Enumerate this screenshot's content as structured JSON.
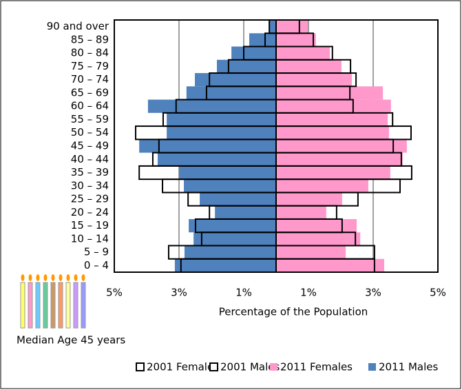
{
  "chart_data": {
    "type": "pyramid",
    "xlabel": "Percentage of the Population",
    "annotation": "Median Age 45 years",
    "categories": [
      "90 and over",
      "85 – 89",
      "80 – 84",
      "75 – 79",
      "70 – 74",
      "65 – 69",
      "60 – 64",
      "55 – 59",
      "50 – 54",
      "45 – 49",
      "40 – 44",
      "35 – 39",
      "30 – 34",
      "25 – 29",
      "20 – 24",
      "15 – 19",
      "10 – 14",
      "5 – 9",
      "0 – 4"
    ],
    "xlim": [
      -5,
      5
    ],
    "xticks": [
      {
        "value": -5,
        "label": "5%"
      },
      {
        "value": -3,
        "label": "3%"
      },
      {
        "value": -1,
        "label": "1%"
      },
      {
        "value": 1,
        "label": "1%"
      },
      {
        "value": 3,
        "label": "3%"
      },
      {
        "value": 5,
        "label": "5%"
      }
    ],
    "grid": true,
    "series": [
      {
        "name": "2001 Females",
        "color": "#000000",
        "outline": true,
        "values": [
          0.72,
          1.15,
          1.74,
          2.3,
          2.47,
          2.28,
          2.38,
          3.6,
          4.17,
          3.62,
          3.87,
          4.19,
          3.83,
          2.53,
          1.87,
          2.04,
          2.45,
          3.04,
          3.04
        ]
      },
      {
        "name": "2001 Males",
        "color": "#000000",
        "outline": true,
        "values": [
          -0.21,
          -0.34,
          -1.0,
          -1.47,
          -2.06,
          -2.15,
          -3.09,
          -3.49,
          -4.34,
          -3.62,
          -3.81,
          -4.23,
          -3.51,
          -2.72,
          -2.06,
          -2.49,
          -2.3,
          -3.32,
          -2.94
        ]
      },
      {
        "name": "2011 Females",
        "color": "#ff99cc",
        "outline": false,
        "values": [
          0.98,
          1.23,
          1.66,
          2.02,
          2.34,
          3.3,
          3.55,
          3.45,
          3.49,
          4.04,
          3.91,
          3.53,
          2.85,
          2.04,
          1.55,
          2.49,
          2.6,
          2.15,
          3.34
        ]
      },
      {
        "name": "2011 Males",
        "color": "#4f81bd",
        "outline": false,
        "values": [
          -0.21,
          -0.83,
          -1.38,
          -1.83,
          -2.51,
          -2.77,
          -3.96,
          -3.38,
          -3.38,
          -4.23,
          -3.66,
          -3.0,
          -2.85,
          -2.36,
          -1.89,
          -2.7,
          -2.55,
          -2.83,
          -3.13
        ]
      }
    ]
  }
}
